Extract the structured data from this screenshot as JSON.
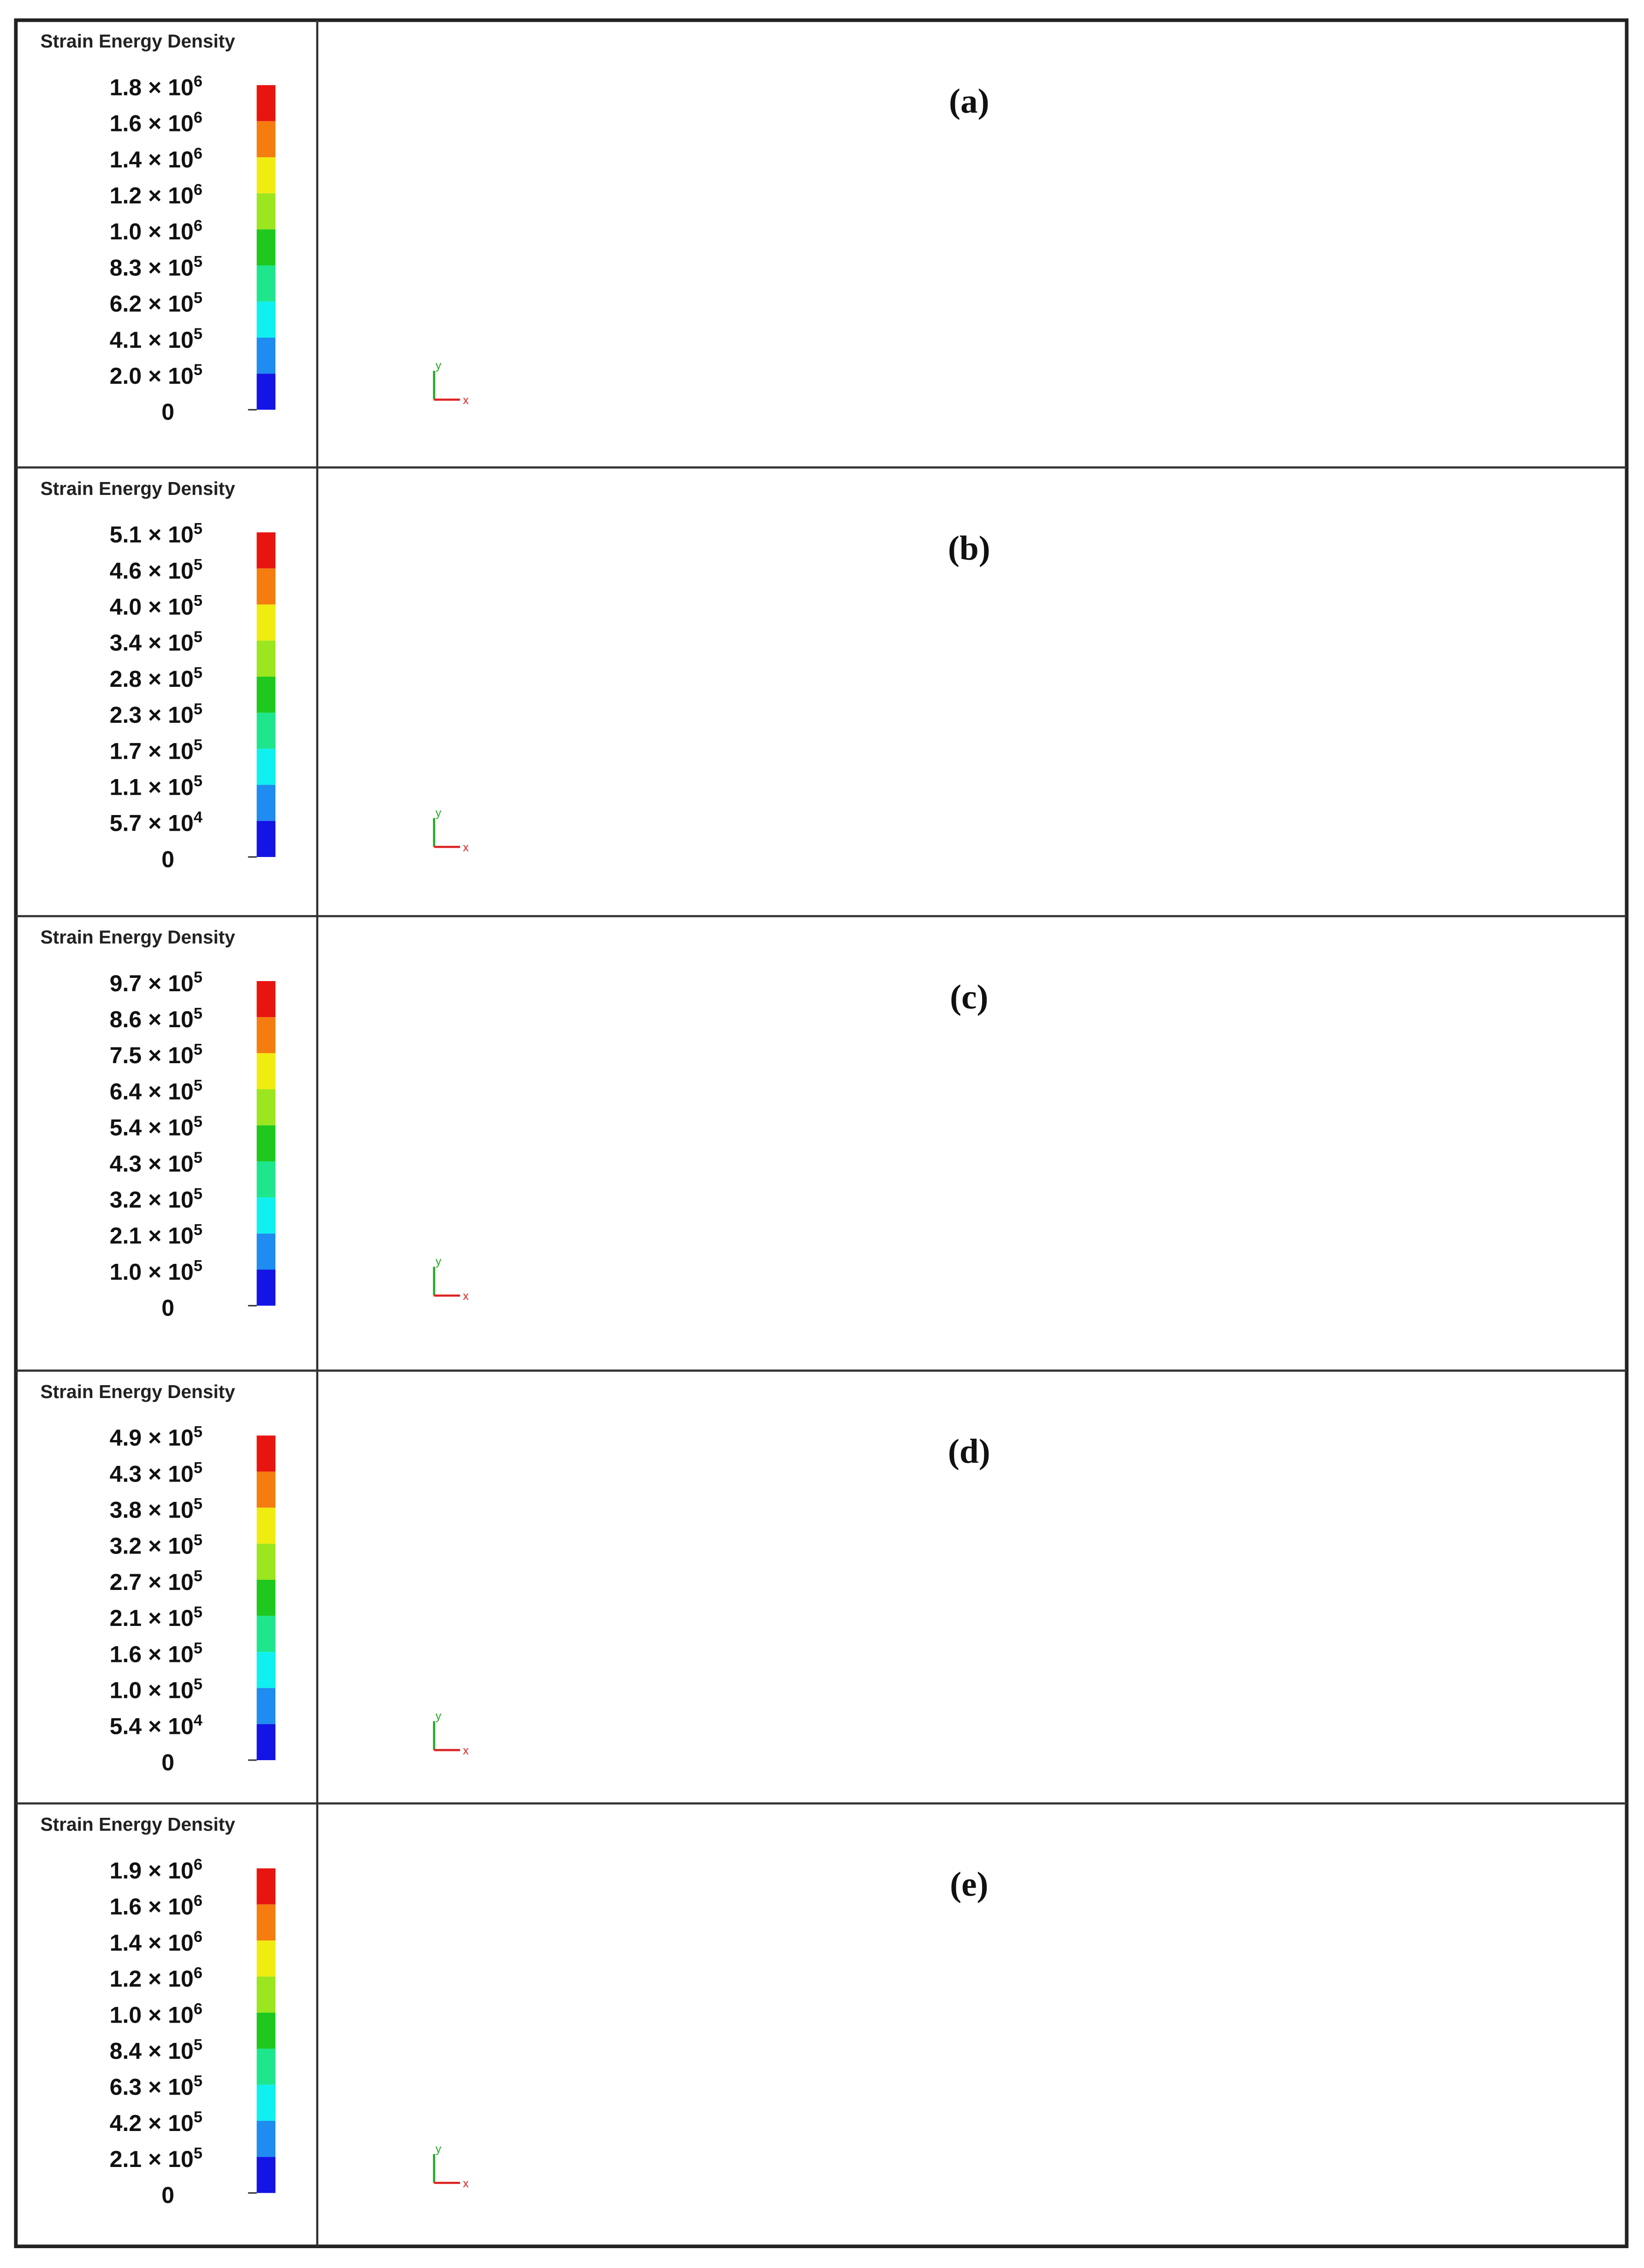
{
  "palette": [
    "#e8140f",
    "#f57d0f",
    "#f0ec10",
    "#9be61e",
    "#1ec81e",
    "#1ee68c",
    "#10f0f0",
    "#1e8cf0",
    "#1414e6"
  ],
  "panels": [
    {
      "label": "(a)",
      "legend_title": "Strain Energy Density",
      "triad": {
        "x": "x",
        "y": "y"
      },
      "legend_labels": [
        {
          "base": "1.8 × 10",
          "exp": "6"
        },
        {
          "base": "1.6 × 10",
          "exp": "6"
        },
        {
          "base": "1.4 × 10",
          "exp": "6"
        },
        {
          "base": "1.2 × 10",
          "exp": "6"
        },
        {
          "base": "1.0 × 10",
          "exp": "6"
        },
        {
          "base": "8.3 × 10",
          "exp": "5"
        },
        {
          "base": "6.2 × 10",
          "exp": "5"
        },
        {
          "base": "4.1 × 10",
          "exp": "5"
        },
        {
          "base": "2.0 × 10",
          "exp": "5"
        },
        {
          "base": "0"
        }
      ]
    },
    {
      "label": "(b)",
      "legend_title": "Strain Energy Density",
      "triad": {
        "x": "x",
        "y": "y"
      },
      "legend_labels": [
        {
          "base": "5.1 × 10",
          "exp": "5"
        },
        {
          "base": "4.6 × 10",
          "exp": "5"
        },
        {
          "base": "4.0 × 10",
          "exp": "5"
        },
        {
          "base": "3.4 × 10",
          "exp": "5"
        },
        {
          "base": "2.8 × 10",
          "exp": "5"
        },
        {
          "base": "2.3 × 10",
          "exp": "5"
        },
        {
          "base": "1.7 × 10",
          "exp": "5"
        },
        {
          "base": "1.1 × 10",
          "exp": "5"
        },
        {
          "base": "5.7 × 10",
          "exp": "4"
        },
        {
          "base": "0"
        }
      ]
    },
    {
      "label": "(c)",
      "legend_title": "Strain Energy Density",
      "triad": {
        "x": "x",
        "y": "y"
      },
      "legend_labels": [
        {
          "base": "9.7 × 10",
          "exp": "5"
        },
        {
          "base": "8.6 × 10",
          "exp": "5"
        },
        {
          "base": "7.5 × 10",
          "exp": "5"
        },
        {
          "base": "6.4 × 10",
          "exp": "5"
        },
        {
          "base": "5.4 × 10",
          "exp": "5"
        },
        {
          "base": "4.3 × 10",
          "exp": "5"
        },
        {
          "base": "3.2 × 10",
          "exp": "5"
        },
        {
          "base": "2.1 × 10",
          "exp": "5"
        },
        {
          "base": "1.0 × 10",
          "exp": "5"
        },
        {
          "base": "0"
        }
      ]
    },
    {
      "label": "(d)",
      "legend_title": "Strain Energy Density",
      "triad": {
        "x": "x",
        "y": "y"
      },
      "legend_labels": [
        {
          "base": "4.9 × 10",
          "exp": "5"
        },
        {
          "base": "4.3 × 10",
          "exp": "5"
        },
        {
          "base": "3.8 × 10",
          "exp": "5"
        },
        {
          "base": "3.2 × 10",
          "exp": "5"
        },
        {
          "base": "2.7 × 10",
          "exp": "5"
        },
        {
          "base": "2.1 × 10",
          "exp": "5"
        },
        {
          "base": "1.6 × 10",
          "exp": "5"
        },
        {
          "base": "1.0 × 10",
          "exp": "5"
        },
        {
          "base": "5.4 × 10",
          "exp": "4"
        },
        {
          "base": "0"
        }
      ]
    },
    {
      "label": "(e)",
      "legend_title": "Strain Energy Density",
      "triad": {
        "x": "x",
        "y": "y"
      },
      "legend_labels": [
        {
          "base": "1.9 × 10",
          "exp": "6"
        },
        {
          "base": "1.6 × 10",
          "exp": "6"
        },
        {
          "base": "1.4 × 10",
          "exp": "6"
        },
        {
          "base": "1.2 × 10",
          "exp": "6"
        },
        {
          "base": "1.0 × 10",
          "exp": "6"
        },
        {
          "base": "8.4 × 10",
          "exp": "5"
        },
        {
          "base": "6.3 × 10",
          "exp": "5"
        },
        {
          "base": "4.2 × 10",
          "exp": "5"
        },
        {
          "base": "2.1 × 10",
          "exp": "5"
        },
        {
          "base": "0"
        }
      ]
    }
  ]
}
